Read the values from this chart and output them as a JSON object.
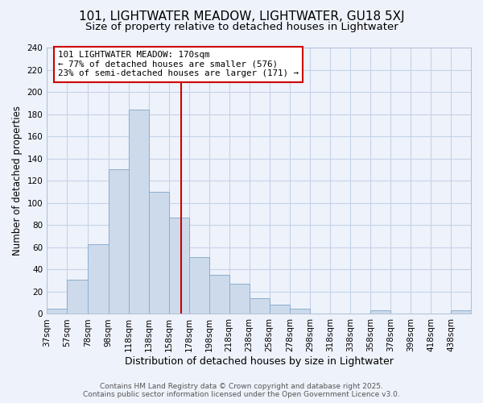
{
  "title": "101, LIGHTWATER MEADOW, LIGHTWATER, GU18 5XJ",
  "subtitle": "Size of property relative to detached houses in Lightwater",
  "xlabel": "Distribution of detached houses by size in Lightwater",
  "ylabel": "Number of detached properties",
  "bin_labels": [
    "37sqm",
    "57sqm",
    "78sqm",
    "98sqm",
    "118sqm",
    "138sqm",
    "158sqm",
    "178sqm",
    "198sqm",
    "218sqm",
    "238sqm",
    "258sqm",
    "278sqm",
    "298sqm",
    "318sqm",
    "338sqm",
    "358sqm",
    "378sqm",
    "398sqm",
    "418sqm",
    "438sqm"
  ],
  "bin_edges": [
    37,
    57,
    78,
    98,
    118,
    138,
    158,
    178,
    198,
    218,
    238,
    258,
    278,
    298,
    318,
    338,
    358,
    378,
    398,
    418,
    438,
    458
  ],
  "bar_values": [
    5,
    31,
    63,
    130,
    184,
    110,
    87,
    51,
    35,
    27,
    14,
    8,
    5,
    0,
    0,
    0,
    3,
    0,
    0,
    0,
    3
  ],
  "bar_color": "#cddaeb",
  "bar_edge_color": "#8aaecf",
  "grid_color": "#c5d3e8",
  "background_color": "#eef2fa",
  "ref_line_x": 170,
  "ref_line_color": "#cc0000",
  "annotation_text": "101 LIGHTWATER MEADOW: 170sqm\n← 77% of detached houses are smaller (576)\n23% of semi-detached houses are larger (171) →",
  "annotation_box_color": "#ffffff",
  "annotation_box_edge": "#cc0000",
  "ylim": [
    0,
    240
  ],
  "yticks": [
    0,
    20,
    40,
    60,
    80,
    100,
    120,
    140,
    160,
    180,
    200,
    220,
    240
  ],
  "footer_line1": "Contains HM Land Registry data © Crown copyright and database right 2025.",
  "footer_line2": "Contains public sector information licensed under the Open Government Licence v3.0.",
  "title_fontsize": 11,
  "subtitle_fontsize": 9.5,
  "xlabel_fontsize": 9,
  "ylabel_fontsize": 8.5,
  "tick_fontsize": 7.5,
  "annot_fontsize": 7.8,
  "footer_fontsize": 6.5
}
